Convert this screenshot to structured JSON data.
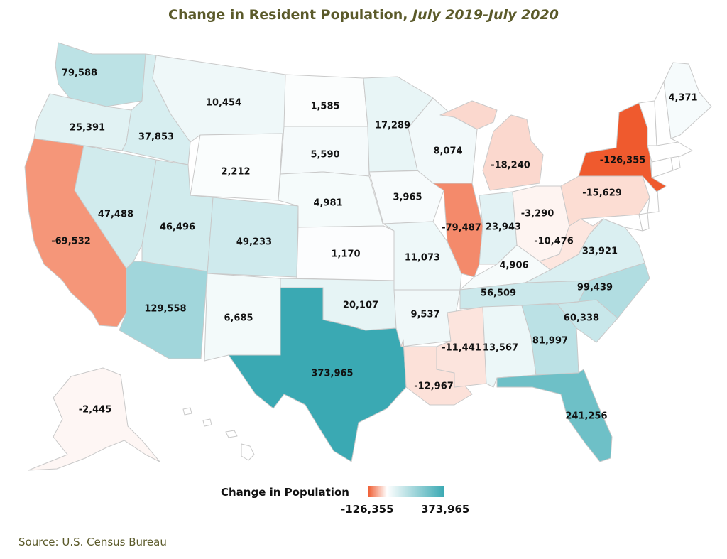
{
  "title": {
    "main": "Change in Resident Population, ",
    "sub": "July 2019-July 2020"
  },
  "legend": {
    "title": "Change in Population",
    "min": "-126,355",
    "max": "373,965",
    "colors": {
      "min": "#ef5a2e",
      "zero": "#ffffff",
      "max": "#3aa9b3"
    }
  },
  "source": "Source: U.S. Census Bureau",
  "states": {
    "WA": {
      "name": "Washington",
      "change": 79588,
      "label": "79,588"
    },
    "OR": {
      "name": "Oregon",
      "change": 25391,
      "label": "25,391"
    },
    "CA": {
      "name": "California",
      "change": -69532,
      "label": "-69,532"
    },
    "ID": {
      "name": "Idaho",
      "change": 37853,
      "label": "37,853"
    },
    "NV": {
      "name": "Nevada",
      "change": 47488,
      "label": "47,488"
    },
    "MT": {
      "name": "Montana",
      "change": 10454,
      "label": "10,454"
    },
    "WY": {
      "name": "Wyoming",
      "change": 2212,
      "label": "2,212"
    },
    "UT": {
      "name": "Utah",
      "change": 46496,
      "label": "46,496"
    },
    "AZ": {
      "name": "Arizona",
      "change": 129558,
      "label": "129,558"
    },
    "CO": {
      "name": "Colorado",
      "change": 49233,
      "label": "49,233"
    },
    "NM": {
      "name": "New Mexico",
      "change": 6685,
      "label": "6,685"
    },
    "ND": {
      "name": "North Dakota",
      "change": 1585,
      "label": "1,585"
    },
    "SD": {
      "name": "South Dakota",
      "change": 5590,
      "label": "5,590"
    },
    "NE": {
      "name": "Nebraska",
      "change": 4981,
      "label": "4,981"
    },
    "KS": {
      "name": "Kansas",
      "change": 1170,
      "label": "1,170"
    },
    "OK": {
      "name": "Oklahoma",
      "change": 20107,
      "label": "20,107"
    },
    "TX": {
      "name": "Texas",
      "change": 373965,
      "label": "373,965"
    },
    "MN": {
      "name": "Minnesota",
      "change": 17289,
      "label": "17,289"
    },
    "IA": {
      "name": "Iowa",
      "change": 3965,
      "label": "3,965"
    },
    "MO": {
      "name": "Missouri",
      "change": 11073,
      "label": "11,073"
    },
    "AR": {
      "name": "Arkansas",
      "change": 9537,
      "label": "9,537"
    },
    "LA": {
      "name": "Louisiana",
      "change": -12967,
      "label": "-12,967"
    },
    "WI": {
      "name": "Wisconsin",
      "change": 8074,
      "label": "8,074"
    },
    "IL": {
      "name": "Illinois",
      "change": -79487,
      "label": "-79,487"
    },
    "MI": {
      "name": "Michigan",
      "change": -18240,
      "label": "-18,240"
    },
    "IN": {
      "name": "Indiana",
      "change": 23943,
      "label": "23,943"
    },
    "OH": {
      "name": "Ohio",
      "change": -3290,
      "label": "-3,290"
    },
    "KY": {
      "name": "Kentucky",
      "change": 4906,
      "label": "4,906"
    },
    "TN": {
      "name": "Tennessee",
      "change": 56509,
      "label": "56,509"
    },
    "MS": {
      "name": "Mississippi",
      "change": -11441,
      "label": "-11,441"
    },
    "AL": {
      "name": "Alabama",
      "change": 13567,
      "label": "13,567"
    },
    "GA": {
      "name": "Georgia",
      "change": 81997,
      "label": "81,997"
    },
    "FL": {
      "name": "Florida",
      "change": 241256,
      "label": "241,256"
    },
    "SC": {
      "name": "South Carolina",
      "change": 60338,
      "label": "60,338"
    },
    "NC": {
      "name": "North Carolina",
      "change": 99439,
      "label": "99,439"
    },
    "VA": {
      "name": "Virginia",
      "change": 33921,
      "label": "33,921"
    },
    "WV": {
      "name": "West Virginia",
      "change": -10476,
      "label": "-10,476"
    },
    "PA": {
      "name": "Pennsylvania",
      "change": -15629,
      "label": "-15,629"
    },
    "NY": {
      "name": "New York",
      "change": -126355,
      "label": "-126,355"
    },
    "ME": {
      "name": "Maine",
      "change": 4371,
      "label": "4,371"
    },
    "AK": {
      "name": "Alaska",
      "change": -2445,
      "label": "-2,445"
    },
    "NJ": {
      "name": "New Jersey",
      "change": null,
      "label": ""
    },
    "MD": {
      "name": "Maryland",
      "change": null,
      "label": ""
    },
    "DE": {
      "name": "Delaware",
      "change": null,
      "label": ""
    },
    "CT": {
      "name": "Connecticut",
      "change": null,
      "label": ""
    },
    "RI": {
      "name": "Rhode Island",
      "change": null,
      "label": ""
    },
    "MA": {
      "name": "Massachusetts",
      "change": null,
      "label": ""
    },
    "VT": {
      "name": "Vermont",
      "change": null,
      "label": ""
    },
    "NH": {
      "name": "New Hampshire",
      "change": null,
      "label": ""
    },
    "HI": {
      "name": "Hawaii",
      "change": null,
      "label": ""
    }
  }
}
